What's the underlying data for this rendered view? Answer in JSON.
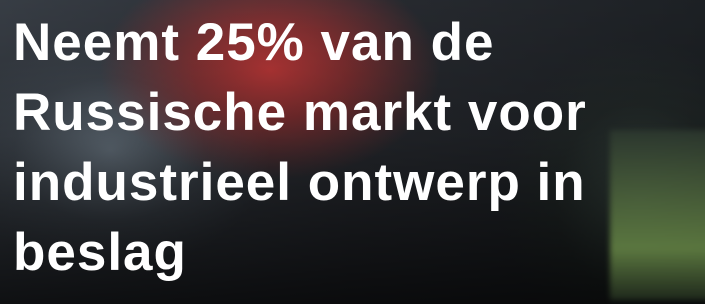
{
  "headline_lines": [
    "Neemt 25% van de",
    "Russische markt voor",
    "industrieel ontwerp in",
    "beslag"
  ]
}
